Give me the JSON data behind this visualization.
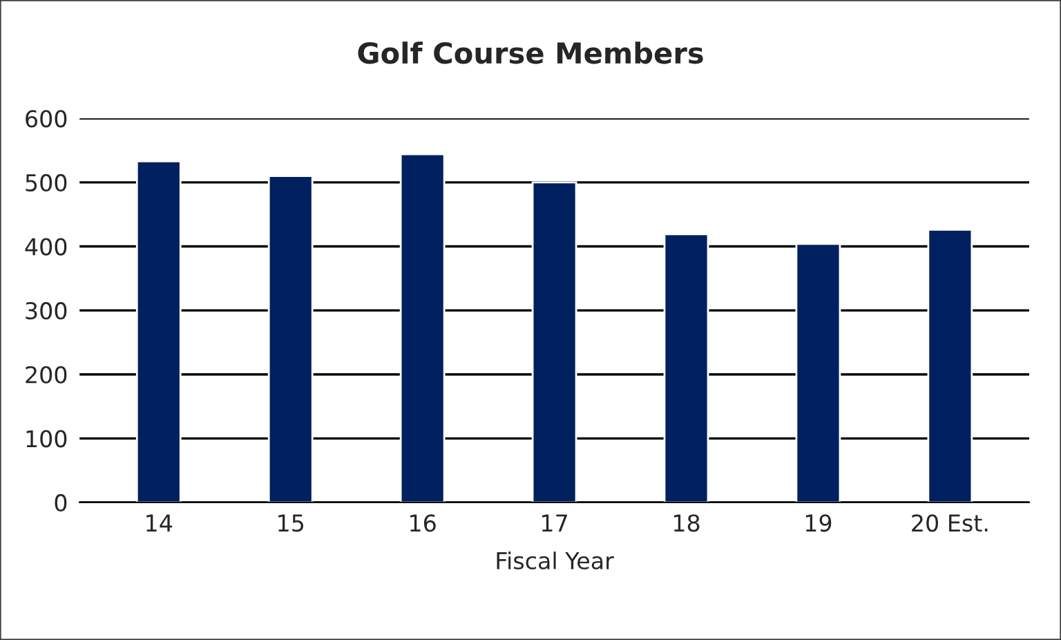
{
  "chart_data": {
    "type": "bar",
    "title": "Golf Course Members",
    "xlabel": "Fiscal Year",
    "categories": [
      "14",
      "15",
      "16",
      "17",
      "18",
      "19",
      "20 Est."
    ],
    "values": [
      533,
      510,
      544,
      500,
      419,
      404,
      426
    ],
    "color": "#002060",
    "ylim": [
      0,
      600
    ],
    "yticks": [
      0,
      100,
      200,
      300,
      400,
      500,
      600
    ],
    "grid": "y",
    "legend": false
  }
}
